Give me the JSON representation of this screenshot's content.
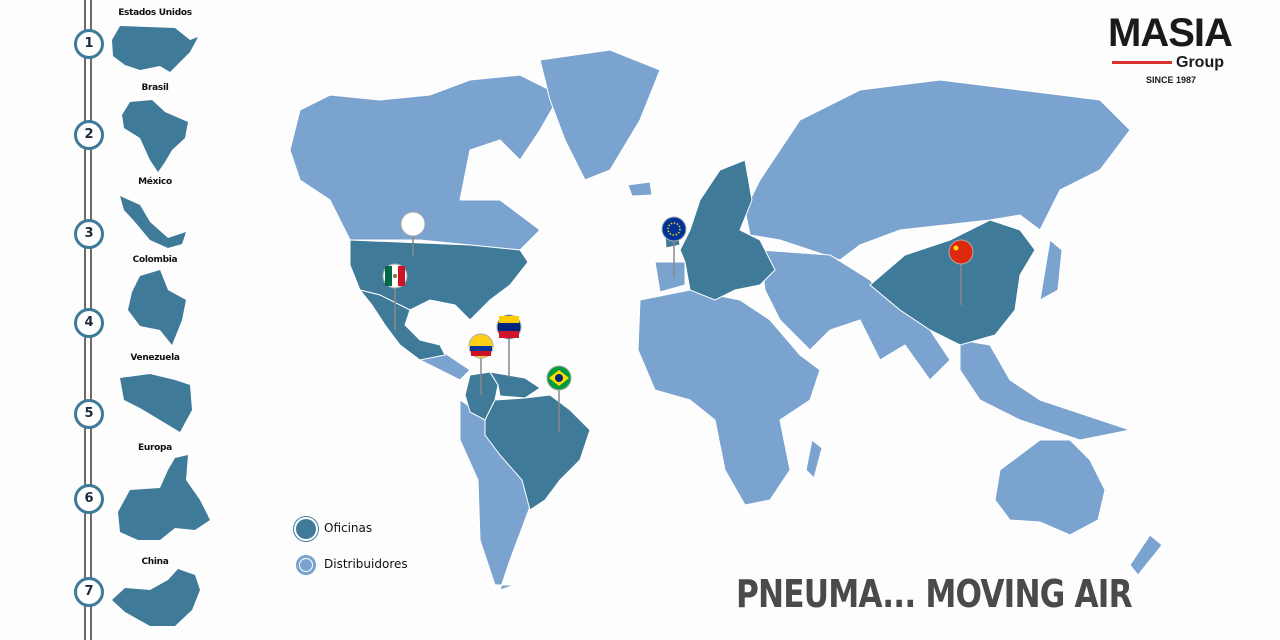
{
  "colors": {
    "offices": "#3f7a99",
    "distributors": "#7aa3cf",
    "rail": "#6f6a66",
    "logo_accent": "#d8322c"
  },
  "sidebar": {
    "items": [
      {
        "number": "1",
        "label": "Estados Unidos"
      },
      {
        "number": "2",
        "label": "Brasil"
      },
      {
        "number": "3",
        "label": "México"
      },
      {
        "number": "4",
        "label": "Colombia"
      },
      {
        "number": "5",
        "label": "Venezuela"
      },
      {
        "number": "6",
        "label": "Europa"
      },
      {
        "number": "7",
        "label": "China"
      }
    ]
  },
  "logo": {
    "name": "MASIA",
    "sub": "Group",
    "since": "SINCE 1987"
  },
  "legend": [
    {
      "label": "Oficinas",
      "color": "#3f7a99"
    },
    {
      "label": "Distribuidores",
      "color": "#7aa3cf"
    }
  ],
  "pins": [
    {
      "country": "Estados Unidos",
      "flag": "usa-flag"
    },
    {
      "country": "México",
      "flag": "mexico-flag"
    },
    {
      "country": "Colombia",
      "flag": "colombia-flag"
    },
    {
      "country": "Venezuela",
      "flag": "venezuela-flag"
    },
    {
      "country": "Brasil",
      "flag": "brazil-flag"
    },
    {
      "country": "Europa",
      "flag": "eu-flag"
    },
    {
      "country": "China",
      "flag": "china-flag"
    }
  ],
  "slogan": "PNEUMA... MOVING AIR"
}
